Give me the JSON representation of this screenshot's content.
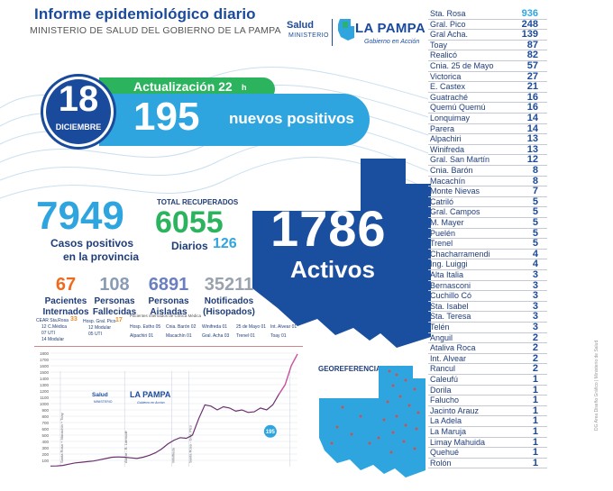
{
  "header": {
    "title": "Informe epidemiológico diario",
    "subtitle": "MINISTERIO DE SALUD DEL GOBIERNO DE LA PAMPA"
  },
  "logo": {
    "salud": "Salud",
    "ministerio": "MINISTERIO",
    "la_pampa": "LA PAMPA",
    "gobierno": "Gobierno en Acción"
  },
  "date": {
    "day": "18",
    "month": "DICIEMBRE"
  },
  "update": {
    "label": "Actualización 22",
    "hour_suffix": "h"
  },
  "new_positives": {
    "value": "195",
    "label": "nuevos positivos"
  },
  "totals": {
    "cases": {
      "value": "7949",
      "line1": "Casos positivos",
      "line2": "en la provincia"
    },
    "recovered": {
      "label": "TOTAL RECUPERADOS",
      "value": "6055",
      "daily_label": "Diarios",
      "daily_value": "126"
    },
    "active": {
      "value": "1786",
      "label": "Activos"
    }
  },
  "stats": [
    {
      "value": "67",
      "line1": "Pacientes",
      "line2": "Internados",
      "color": "#f06a1e"
    },
    {
      "value": "108",
      "line1": "Personas",
      "line2": "Fallecidas",
      "color": "#8a9bb5"
    },
    {
      "value": "6891",
      "line1": "Personas",
      "line2": "Aisladas",
      "color": "#6a7fc0"
    },
    {
      "value": "35211",
      "line1": "Notificados",
      "line2": "(Hisopados)",
      "color": "#9aa2ad"
    }
  ],
  "mini_table": {
    "caption": "Pacientes internados de Clínica Médica",
    "cear": "CEAR Sta.Rosa",
    "cear_val": "33",
    "cear_rows": [
      "12 C.Médica",
      "07 UTI",
      "14 Modular"
    ],
    "hosp": "Hosp. Gral. Pico",
    "hosp_val": "17",
    "hosp_rows": [
      "12 Modular",
      "05 UTI"
    ],
    "items": [
      "Hosp. Estho 05",
      "Cnia. Barón 02",
      "Winifreda 01",
      "25 de Mayo 01",
      "Int. Alvear 01",
      "Alpachiri 01",
      "Macachín 01",
      "Gral. Acha 03",
      "Trenel 01",
      "Toay 01"
    ]
  },
  "chart_data": {
    "type": "line",
    "title": "",
    "xlabel": "",
    "ylabel": "",
    "ylim": [
      0,
      1800
    ],
    "yticks": [
      100,
      200,
      300,
      400,
      500,
      600,
      700,
      800,
      900,
      1000,
      1100,
      1200,
      1300,
      1400,
      1500,
      1600,
      1700,
      1800
    ],
    "annotations": [
      "Santa Rosa + Macachín + Toay",
      "Alvear - B. Larroudé",
      "Winifreda",
      "Santa Rosa - Gral. Pico",
      "Guatraché",
      "195"
    ],
    "series": [
      {
        "values": [
          10,
          12,
          20,
          40,
          60,
          70,
          80,
          90,
          110,
          130,
          150,
          155,
          150,
          140,
          130,
          150,
          180,
          220,
          280,
          360,
          420,
          460,
          450,
          500,
          760,
          980,
          960,
          900,
          950,
          930,
          880,
          900,
          860,
          870,
          930,
          900,
          980,
          1150,
          1300,
          1600,
          1786
        ]
      }
    ]
  },
  "georef": {
    "title": "GEOREFERENCIA"
  },
  "localities": [
    {
      "name": "Sta. Rosa",
      "value": "936"
    },
    {
      "name": "Gral. Pico",
      "value": "248"
    },
    {
      "name": "Gral Acha.",
      "value": "139"
    },
    {
      "name": "Toay",
      "value": "87"
    },
    {
      "name": "Realicó",
      "value": "82"
    },
    {
      "name": "Cnia. 25 de Mayo",
      "value": "57"
    },
    {
      "name": "Victorica",
      "value": "27"
    },
    {
      "name": "E. Castex",
      "value": "21"
    },
    {
      "name": "Guatraché",
      "value": "16"
    },
    {
      "name": "Quemú Quemú",
      "value": "16"
    },
    {
      "name": "Lonquimay",
      "value": "14"
    },
    {
      "name": "Parera",
      "value": "14"
    },
    {
      "name": "Alpachiri",
      "value": "13"
    },
    {
      "name": "Winifreda",
      "value": "13"
    },
    {
      "name": "Gral. San Martín",
      "value": "12"
    },
    {
      "name": "Cnia. Barón",
      "value": "8"
    },
    {
      "name": "Macachín",
      "value": "8"
    },
    {
      "name": "Monte Nievas",
      "value": "7"
    },
    {
      "name": "Catriló",
      "value": "5"
    },
    {
      "name": "Gral. Campos",
      "value": "5"
    },
    {
      "name": "M. Mayer",
      "value": "5"
    },
    {
      "name": "Puelén",
      "value": "5"
    },
    {
      "name": "Trenel",
      "value": "5"
    },
    {
      "name": "Chacharramendi",
      "value": "4"
    },
    {
      "name": "Ing. Luiggi",
      "value": "4"
    },
    {
      "name": "Alta Italia",
      "value": "3"
    },
    {
      "name": "Bernasconi",
      "value": "3"
    },
    {
      "name": "Cuchillo Có",
      "value": "3"
    },
    {
      "name": "Sta. Isabel",
      "value": "3"
    },
    {
      "name": "Sta. Teresa",
      "value": "3"
    },
    {
      "name": "Telén",
      "value": "3"
    },
    {
      "name": "Anguil",
      "value": "2"
    },
    {
      "name": "Ataliva Roca",
      "value": "2"
    },
    {
      "name": "Int. Alvear",
      "value": "2"
    },
    {
      "name": "Rancul",
      "value": "2"
    },
    {
      "name": "Caleufú",
      "value": "1"
    },
    {
      "name": "Dorila",
      "value": "1"
    },
    {
      "name": "Falucho",
      "value": "1"
    },
    {
      "name": "Jacinto Arauz",
      "value": "1"
    },
    {
      "name": "La Adela",
      "value": "1"
    },
    {
      "name": "La Maruja",
      "value": "1"
    },
    {
      "name": "Limay Mahuida",
      "value": "1"
    },
    {
      "name": "Quehué",
      "value": "1"
    },
    {
      "name": "Rolón",
      "value": "1"
    }
  ],
  "credit": "DG Area Diseño Gráfico | Ministerio de Salud",
  "colors": {
    "blue": "#2fa5e0",
    "dark_blue": "#1a4a9c",
    "green": "#2bb35e",
    "orange": "#f06a1e"
  }
}
